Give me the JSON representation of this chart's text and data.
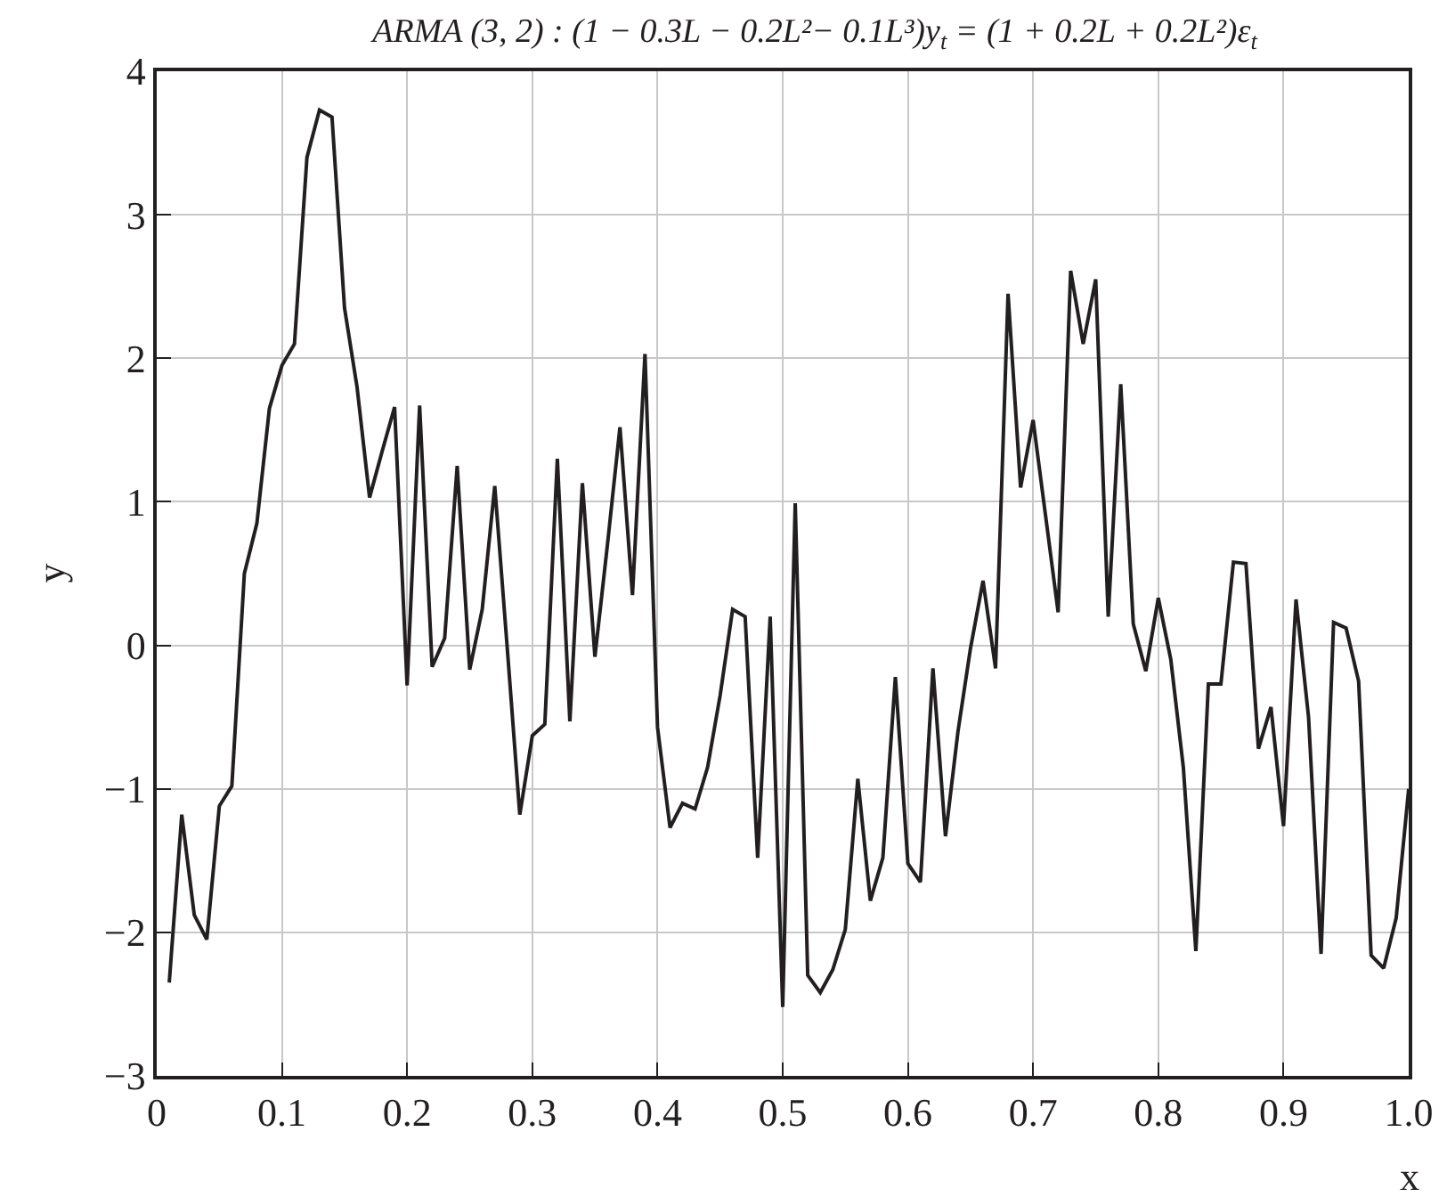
{
  "chart_data": {
    "type": "line",
    "title": "ARMA (3, 2) : (1 − 0.3L − 0.2L²− 0.1L³)y$_{t}$ = (1 + 0.2L + 0.2L²)ε$_{t}$",
    "xlabel": "x",
    "ylabel": "y",
    "x": [
      0.01,
      0.02,
      0.03,
      0.04,
      0.05,
      0.06,
      0.07,
      0.08,
      0.09,
      0.1,
      0.11,
      0.12,
      0.13,
      0.14,
      0.15,
      0.16,
      0.17,
      0.18,
      0.19,
      0.2,
      0.21,
      0.22,
      0.23,
      0.24,
      0.25,
      0.26,
      0.27,
      0.28,
      0.29,
      0.3,
      0.31,
      0.32,
      0.33,
      0.34,
      0.35,
      0.36,
      0.37,
      0.38,
      0.39,
      0.4,
      0.41,
      0.42,
      0.43,
      0.44,
      0.45,
      0.46,
      0.47,
      0.48,
      0.49,
      0.5,
      0.51,
      0.52,
      0.53,
      0.54,
      0.55,
      0.56,
      0.57,
      0.58,
      0.59,
      0.6,
      0.61,
      0.62,
      0.63,
      0.64,
      0.65,
      0.66,
      0.67,
      0.68,
      0.69,
      0.7,
      0.71,
      0.72,
      0.73,
      0.74,
      0.75,
      0.76,
      0.77,
      0.78,
      0.79,
      0.8,
      0.81,
      0.82,
      0.83,
      0.84,
      0.85,
      0.86,
      0.87,
      0.88,
      0.89,
      0.9,
      0.91,
      0.92,
      0.93,
      0.94,
      0.95,
      0.96,
      0.97,
      0.98,
      0.99,
      1.0
    ],
    "series": [
      {
        "color": "#231f20",
        "values": [
          -2.35,
          -1.18,
          -1.88,
          -2.05,
          -1.12,
          -0.98,
          0.5,
          0.85,
          1.65,
          1.95,
          2.1,
          3.4,
          3.73,
          3.68,
          2.35,
          1.8,
          1.03,
          1.35,
          1.66,
          -0.28,
          1.67,
          -0.15,
          0.05,
          1.25,
          -0.17,
          0.25,
          1.11,
          -0.02,
          -1.18,
          -0.63,
          -0.55,
          1.3,
          -0.53,
          1.13,
          -0.08,
          0.7,
          1.52,
          0.35,
          2.03,
          -0.57,
          -1.27,
          -1.1,
          -1.14,
          -0.85,
          -0.35,
          0.25,
          0.2,
          -1.48,
          0.2,
          -2.52,
          0.99,
          -2.3,
          -2.42,
          -2.26,
          -1.98,
          -0.93,
          -1.78,
          -1.48,
          -0.22,
          -1.52,
          -1.65,
          -0.16,
          -1.33,
          -0.6,
          -0.02,
          0.45,
          -0.16,
          2.45,
          1.1,
          1.57,
          0.9,
          0.23,
          2.61,
          2.1,
          2.55,
          0.2,
          1.82,
          0.15,
          -0.18,
          0.33,
          -0.1,
          -0.85,
          -2.13,
          -0.27,
          -0.27,
          0.58,
          0.57,
          -0.72,
          -0.43,
          -1.26,
          0.32,
          -0.5,
          -2.15,
          0.16,
          0.12,
          -0.25,
          -2.16,
          -2.25,
          -1.9,
          -1.0
        ]
      }
    ],
    "xlim": [
      0,
      1
    ],
    "ylim": [
      -3,
      4
    ],
    "xticks": [
      0,
      0.1,
      0.2,
      0.3,
      0.4,
      0.5,
      0.6,
      0.7,
      0.8,
      0.9,
      {
        "value": 1,
        "label": "1.0"
      }
    ],
    "yticks": [
      {
        "value": -3,
        "label": "−3"
      },
      {
        "value": -2,
        "label": "−2"
      },
      {
        "value": -1,
        "label": "−1"
      },
      0,
      1,
      2,
      3,
      4
    ],
    "grid": true,
    "marker": "none",
    "line_style": "solid"
  }
}
